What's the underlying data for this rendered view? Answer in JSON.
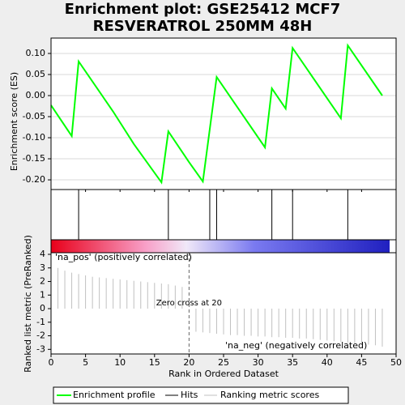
{
  "chart_data": [
    {
      "type": "line",
      "title": "Enrichment plot: GSE25412 MCF7",
      "subtitle": "RESVERATROL 250MM 48H",
      "y_label": "Enrichment score (ES)",
      "name": "Enrichment profile",
      "color": "#00ff00",
      "x": [
        0,
        3,
        4,
        9,
        12,
        16,
        17,
        20,
        22,
        24,
        31,
        32,
        34,
        35,
        42,
        43,
        48
      ],
      "values": [
        -0.023,
        -0.096,
        0.081,
        -0.038,
        -0.115,
        -0.206,
        -0.085,
        -0.158,
        -0.204,
        0.044,
        -0.123,
        0.017,
        -0.031,
        0.113,
        -0.054,
        0.119,
        0.0
      ],
      "xlim": [
        0,
        50
      ],
      "ylim": [
        -0.223,
        0.1365
      ],
      "yticks": [
        {
          "value": 0.1,
          "label": "0.10"
        },
        0.05,
        {
          "value": 0,
          "label": "0.00"
        },
        -0.05,
        {
          "value": -0.1,
          "label": "-0.10"
        },
        -0.15,
        {
          "value": -0.2,
          "label": "-0.20"
        }
      ],
      "grid": true
    },
    {
      "type": "hits",
      "name": "Hits",
      "color": "#000000",
      "x": [
        4,
        17,
        23,
        24,
        32,
        35,
        43
      ],
      "xlim": [
        0,
        50
      ]
    },
    {
      "type": "bar",
      "y_label": "Ranked list metric (PreRanked)",
      "x_label": "Rank in Ordered Dataset",
      "name": "Ranking metric scores",
      "color": "#c0c0c0",
      "x": [
        1,
        2,
        3,
        4,
        5,
        6,
        7,
        8,
        9,
        10,
        11,
        12,
        13,
        14,
        15,
        16,
        17,
        18,
        19,
        21,
        22,
        23,
        24,
        25,
        26,
        27,
        28,
        29,
        30,
        31,
        32,
        33,
        34,
        35,
        36,
        37,
        38,
        39,
        40,
        41,
        42,
        43,
        44,
        45,
        46,
        47,
        48
      ],
      "values": [
        3.0,
        2.8,
        2.65,
        2.55,
        2.45,
        2.35,
        2.3,
        2.25,
        2.2,
        2.15,
        2.1,
        2.05,
        2.0,
        1.95,
        1.9,
        1.85,
        1.8,
        1.7,
        1.6,
        -1.7,
        -1.75,
        -1.8,
        -1.85,
        -1.9,
        -1.95,
        -1.95,
        -2.0,
        -2.0,
        -2.05,
        -2.05,
        -2.1,
        -2.1,
        -2.15,
        -2.15,
        -2.2,
        -2.2,
        -2.25,
        -2.3,
        -2.35,
        -2.4,
        -2.45,
        -2.5,
        -2.55,
        -2.6,
        -2.65,
        -2.7,
        -2.8
      ],
      "xlim": [
        0,
        50
      ],
      "ylim": [
        -3.34,
        4.12
      ],
      "xticks": [
        0,
        5,
        10,
        15,
        20,
        25,
        30,
        35,
        40,
        45,
        50
      ],
      "yticks": [
        -3,
        -2,
        -1,
        0,
        1,
        2,
        3,
        4
      ],
      "zero_cross": 20,
      "annotations": [
        "'na_pos' (positively correlated)",
        "'na_neg' (negatively correlated)",
        "Zero cross at 20"
      ]
    }
  ]
}
